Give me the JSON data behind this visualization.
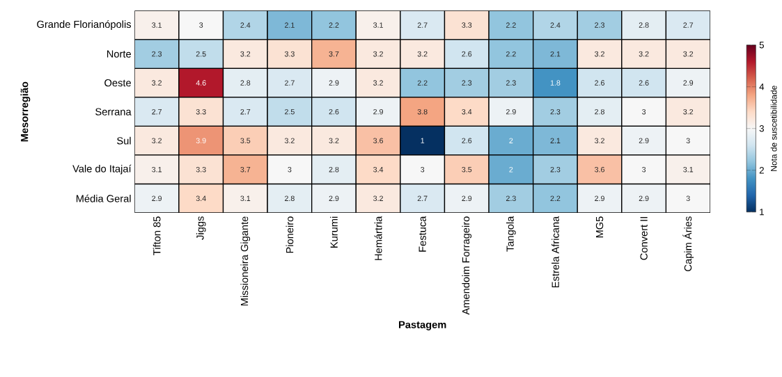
{
  "chart_data": {
    "type": "heatmap",
    "xlabel": "Pastagem",
    "ylabel": "Mesorregião",
    "clabel": "Nota de suscetibilidade",
    "categories": [
      "Tifton 85",
      "Jiggs",
      "Missioneira Gigante",
      "Pioneiro",
      "Kurumi",
      "Hemártria",
      "Festuca",
      "Amendoim Forrageiro",
      "Tangola",
      "Estrela Africana",
      "MG5",
      "Convert II",
      "Capim Áries"
    ],
    "y_categories": [
      "Grande Florianópolis",
      "Norte",
      "Oeste",
      "Serrana",
      "Sul",
      "Vale do Itajaí",
      "Média Geral"
    ],
    "cells": [
      [
        3.1,
        3,
        2.4,
        2.1,
        2.2,
        3.1,
        2.7,
        3.3,
        2.2,
        2.4,
        2.3,
        2.8,
        2.7
      ],
      [
        2.3,
        2.5,
        3.2,
        3.3,
        3.7,
        3.2,
        3.2,
        2.6,
        2.2,
        2.1,
        3.2,
        3.2,
        3.2
      ],
      [
        3.2,
        4.6,
        2.8,
        2.7,
        2.9,
        3.2,
        2.2,
        2.3,
        2.3,
        1.8,
        2.6,
        2.6,
        2.9
      ],
      [
        2.7,
        3.3,
        2.7,
        2.5,
        2.6,
        2.9,
        3.8,
        3.4,
        2.9,
        2.3,
        2.8,
        3,
        3.2
      ],
      [
        3.2,
        3.9,
        3.5,
        3.2,
        3.2,
        3.6,
        1,
        2.6,
        2,
        2.1,
        3.2,
        2.9,
        3
      ],
      [
        3.1,
        3.3,
        3.7,
        3,
        2.8,
        3.4,
        3,
        3.5,
        2,
        2.3,
        3.6,
        3,
        3.1
      ],
      [
        2.9,
        3.4,
        3.1,
        2.8,
        2.9,
        3.2,
        2.7,
        2.9,
        2.3,
        2.2,
        2.9,
        2.9,
        3
      ]
    ],
    "clim": [
      1,
      5
    ],
    "cticks": [
      1,
      2,
      3,
      4,
      5
    ],
    "data_labels": true
  }
}
